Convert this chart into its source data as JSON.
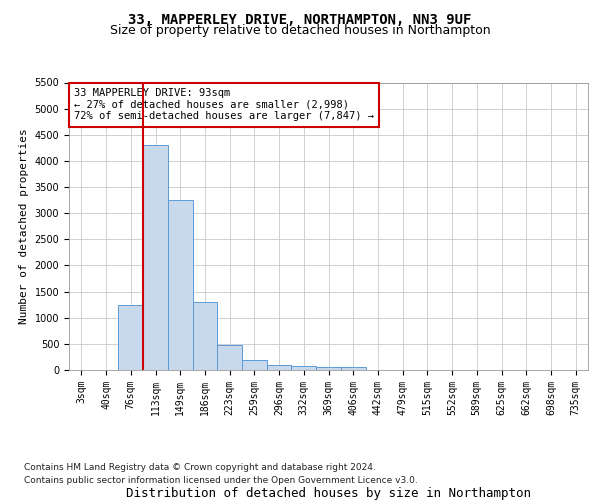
{
  "title": "33, MAPPERLEY DRIVE, NORTHAMPTON, NN3 9UF",
  "subtitle": "Size of property relative to detached houses in Northampton",
  "xlabel": "Distribution of detached houses by size in Northampton",
  "ylabel": "Number of detached properties",
  "footer_line1": "Contains HM Land Registry data © Crown copyright and database right 2024.",
  "footer_line2": "Contains public sector information licensed under the Open Government Licence v3.0.",
  "bin_labels": [
    "3sqm",
    "40sqm",
    "76sqm",
    "113sqm",
    "149sqm",
    "186sqm",
    "223sqm",
    "259sqm",
    "296sqm",
    "332sqm",
    "369sqm",
    "406sqm",
    "442sqm",
    "479sqm",
    "515sqm",
    "552sqm",
    "589sqm",
    "625sqm",
    "662sqm",
    "698sqm",
    "735sqm"
  ],
  "bar_values": [
    0,
    0,
    1250,
    4300,
    3250,
    1300,
    475,
    200,
    100,
    75,
    50,
    50,
    0,
    0,
    0,
    0,
    0,
    0,
    0,
    0,
    0
  ],
  "bar_color": "#c8d9ee",
  "bar_edgecolor": "#5b9bd5",
  "property_line_x": 2.5,
  "property_line_color": "#cc0000",
  "annotation_text": "33 MAPPERLEY DRIVE: 93sqm\n← 27% of detached houses are smaller (2,998)\n72% of semi-detached houses are larger (7,847) →",
  "annotation_box_edgecolor": "#cc0000",
  "annotation_box_facecolor": "#ffffff",
  "ylim": [
    0,
    5500
  ],
  "yticks": [
    0,
    500,
    1000,
    1500,
    2000,
    2500,
    3000,
    3500,
    4000,
    4500,
    5000,
    5500
  ],
  "background_color": "#ffffff",
  "grid_color": "#c8c8d0",
  "title_fontsize": 10,
  "subtitle_fontsize": 9,
  "xlabel_fontsize": 9,
  "ylabel_fontsize": 8,
  "tick_fontsize": 7,
  "annotation_fontsize": 7.5,
  "footer_fontsize": 6.5
}
